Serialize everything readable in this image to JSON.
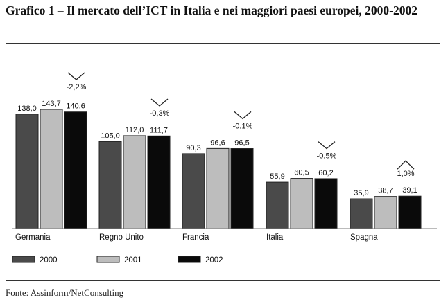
{
  "title": "Grafico 1 – Il mercato dell’ICT in Italia e nei maggiori paesi europei, 2000-2002",
  "source": "Fonte: Assinform/NetConsulting",
  "chart_data": {
    "type": "bar",
    "title": "",
    "xlabel": "",
    "ylabel": "",
    "categories": [
      "Germania",
      "Regno Unito",
      "Francia",
      "Italia",
      "Spagna"
    ],
    "series": [
      {
        "name": "2000",
        "color": "#4a4a4a",
        "values": [
          138.0,
          105.0,
          90.3,
          55.9,
          35.9
        ],
        "labels": [
          "138,0",
          "105,0",
          "90,3",
          "55,9",
          "35,9"
        ]
      },
      {
        "name": "2001",
        "color": "#bdbdbd",
        "values": [
          143.7,
          112.0,
          96.6,
          60.5,
          38.7
        ],
        "labels": [
          "143,7",
          "112,0",
          "96,6",
          "60,5",
          "38,7"
        ]
      },
      {
        "name": "2002",
        "color": "#0a0a0a",
        "values": [
          140.6,
          111.7,
          96.5,
          60.2,
          39.1
        ],
        "labels": [
          "140,6",
          "111,7",
          "96,5",
          "60,2",
          "39,1"
        ]
      }
    ],
    "annotations": [
      {
        "category": "Germania",
        "text": "-2,2%",
        "direction": "down"
      },
      {
        "category": "Regno Unito",
        "text": "-0,3%",
        "direction": "down"
      },
      {
        "category": "Francia",
        "text": "-0,1%",
        "direction": "down"
      },
      {
        "category": "Italia",
        "text": "-0,5%",
        "direction": "down"
      },
      {
        "category": "Spagna",
        "text": "1,0%",
        "direction": "up"
      }
    ],
    "ylim": [
      0,
      143.7
    ],
    "grid": false,
    "legend_position": "bottom-left"
  }
}
